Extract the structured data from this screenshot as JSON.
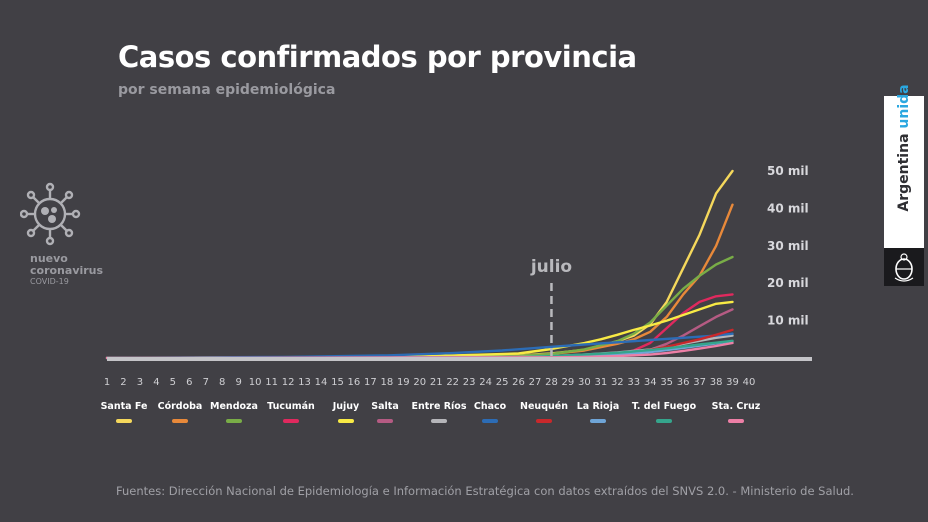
{
  "logo": {
    "icon": "coronavirus-icon",
    "line1": "nuevo",
    "line2": "coronavirus",
    "line3": "COVID-19"
  },
  "brand": {
    "word1": "Argentina",
    "word2": "unida",
    "seal_icon": "argentina-coat-of-arms-icon",
    "accent_color": "#2aa7e0"
  },
  "source": "Fuentes: Dirección Nacional de Epidemiología e Información Estratégica con datos extraídos del SNVS 2.0. - Ministerio de Salud.",
  "chart_data": {
    "type": "line",
    "title": "Casos confirmados por provincia",
    "subtitle": "por semana epidemiológica",
    "x": [
      1,
      2,
      3,
      4,
      5,
      6,
      7,
      8,
      9,
      10,
      11,
      12,
      13,
      14,
      15,
      16,
      17,
      18,
      19,
      20,
      21,
      22,
      23,
      24,
      25,
      26,
      27,
      28,
      29,
      30,
      31,
      32,
      33,
      34,
      35,
      36,
      37,
      38,
      39,
      40
    ],
    "ylim": [
      0,
      55000
    ],
    "y_ticks": [
      {
        "value": 10000,
        "label": "10 mil"
      },
      {
        "value": 20000,
        "label": "20 mil"
      },
      {
        "value": 30000,
        "label": "30 mil"
      },
      {
        "value": 40000,
        "label": "40 mil"
      },
      {
        "value": 50000,
        "label": "50 mil"
      }
    ],
    "annotations": [
      {
        "x": 28,
        "label": "julio"
      }
    ],
    "grid": false,
    "legend_position": "bottom",
    "series": [
      {
        "name": "Santa Fe",
        "color": "#f5d85c",
        "points": [
          [
            1,
            0
          ],
          [
            20,
            300
          ],
          [
            26,
            700
          ],
          [
            28,
            1200
          ],
          [
            30,
            2200
          ],
          [
            32,
            4500
          ],
          [
            33,
            6000
          ],
          [
            34,
            9000
          ],
          [
            35,
            15000
          ],
          [
            36,
            24000
          ],
          [
            37,
            33000
          ],
          [
            38,
            44000
          ],
          [
            39,
            50000
          ]
        ]
      },
      {
        "name": "Córdoba",
        "color": "#e8893a",
        "points": [
          [
            1,
            0
          ],
          [
            20,
            300
          ],
          [
            26,
            600
          ],
          [
            28,
            1100
          ],
          [
            30,
            2000
          ],
          [
            32,
            3800
          ],
          [
            33,
            5000
          ],
          [
            34,
            7000
          ],
          [
            35,
            11000
          ],
          [
            36,
            17000
          ],
          [
            37,
            22000
          ],
          [
            38,
            30000
          ],
          [
            39,
            41000
          ]
        ]
      },
      {
        "name": "Mendoza",
        "color": "#79ad47",
        "points": [
          [
            1,
            0
          ],
          [
            20,
            300
          ],
          [
            26,
            600
          ],
          [
            28,
            1100
          ],
          [
            30,
            2300
          ],
          [
            32,
            4500
          ],
          [
            33,
            6500
          ],
          [
            34,
            9500
          ],
          [
            35,
            14000
          ],
          [
            36,
            18500
          ],
          [
            37,
            22000
          ],
          [
            38,
            25000
          ],
          [
            39,
            27000
          ]
        ]
      },
      {
        "name": "Tucumán",
        "color": "#e0295e",
        "points": [
          [
            1,
            0
          ],
          [
            24,
            200
          ],
          [
            28,
            400
          ],
          [
            30,
            700
          ],
          [
            32,
            1200
          ],
          [
            33,
            2000
          ],
          [
            34,
            4000
          ],
          [
            35,
            8000
          ],
          [
            36,
            12000
          ],
          [
            37,
            15000
          ],
          [
            38,
            16500
          ],
          [
            39,
            17000
          ]
        ]
      },
      {
        "name": "Jujuy",
        "color": "#f8ea45",
        "points": [
          [
            1,
            0
          ],
          [
            20,
            400
          ],
          [
            26,
            1200
          ],
          [
            28,
            2400
          ],
          [
            30,
            4000
          ],
          [
            31,
            5000
          ],
          [
            32,
            6200
          ],
          [
            33,
            7500
          ],
          [
            34,
            8700
          ],
          [
            35,
            10000
          ],
          [
            36,
            11500
          ],
          [
            37,
            13000
          ],
          [
            38,
            14500
          ],
          [
            39,
            15000
          ]
        ]
      },
      {
        "name": "Salta",
        "color": "#b55b83",
        "points": [
          [
            1,
            0
          ],
          [
            24,
            200
          ],
          [
            28,
            300
          ],
          [
            30,
            500
          ],
          [
            32,
            900
          ],
          [
            33,
            1400
          ],
          [
            34,
            2200
          ],
          [
            35,
            3800
          ],
          [
            36,
            6000
          ],
          [
            37,
            8500
          ],
          [
            38,
            11000
          ],
          [
            39,
            13000
          ]
        ]
      },
      {
        "name": "Entre Ríos",
        "color": "#b5b5b9",
        "points": [
          [
            1,
            0
          ],
          [
            26,
            300
          ],
          [
            28,
            500
          ],
          [
            30,
            900
          ],
          [
            32,
            1500
          ],
          [
            34,
            2300
          ],
          [
            35,
            3000
          ],
          [
            36,
            3800
          ],
          [
            37,
            4600
          ],
          [
            38,
            5400
          ],
          [
            39,
            6000
          ]
        ]
      },
      {
        "name": "Chaco",
        "color": "#2c6cb5",
        "points": [
          [
            1,
            0
          ],
          [
            12,
            300
          ],
          [
            18,
            700
          ],
          [
            22,
            1300
          ],
          [
            25,
            2000
          ],
          [
            28,
            3000
          ],
          [
            30,
            3600
          ],
          [
            32,
            4200
          ],
          [
            34,
            4800
          ],
          [
            36,
            5400
          ],
          [
            38,
            6000
          ],
          [
            39,
            6500
          ]
        ]
      },
      {
        "name": "Neuquén",
        "color": "#c8282b",
        "points": [
          [
            1,
            0
          ],
          [
            26,
            200
          ],
          [
            28,
            300
          ],
          [
            30,
            600
          ],
          [
            32,
            1100
          ],
          [
            34,
            2200
          ],
          [
            35,
            3000
          ],
          [
            36,
            4000
          ],
          [
            37,
            5000
          ],
          [
            38,
            6200
          ],
          [
            39,
            7500
          ]
        ]
      },
      {
        "name": "La Rioja",
        "color": "#6fa5d7",
        "points": [
          [
            1,
            0
          ],
          [
            28,
            200
          ],
          [
            30,
            400
          ],
          [
            32,
            800
          ],
          [
            34,
            1600
          ],
          [
            35,
            2100
          ],
          [
            36,
            2700
          ],
          [
            37,
            3300
          ],
          [
            38,
            3900
          ],
          [
            39,
            4500
          ]
        ]
      },
      {
        "name": "T. del Fuego",
        "color": "#35a58c",
        "points": [
          [
            1,
            0
          ],
          [
            26,
            200
          ],
          [
            28,
            500
          ],
          [
            30,
            900
          ],
          [
            32,
            1400
          ],
          [
            34,
            2100
          ],
          [
            35,
            2600
          ],
          [
            36,
            3100
          ],
          [
            37,
            3600
          ],
          [
            38,
            4100
          ],
          [
            39,
            4600
          ]
        ]
      },
      {
        "name": "Sta. Cruz",
        "color": "#ed7fa6",
        "points": [
          [
            1,
            0
          ],
          [
            28,
            200
          ],
          [
            30,
            300
          ],
          [
            32,
            500
          ],
          [
            34,
            900
          ],
          [
            35,
            1300
          ],
          [
            36,
            1900
          ],
          [
            37,
            2500
          ],
          [
            38,
            3200
          ],
          [
            39,
            4000
          ]
        ]
      }
    ]
  }
}
